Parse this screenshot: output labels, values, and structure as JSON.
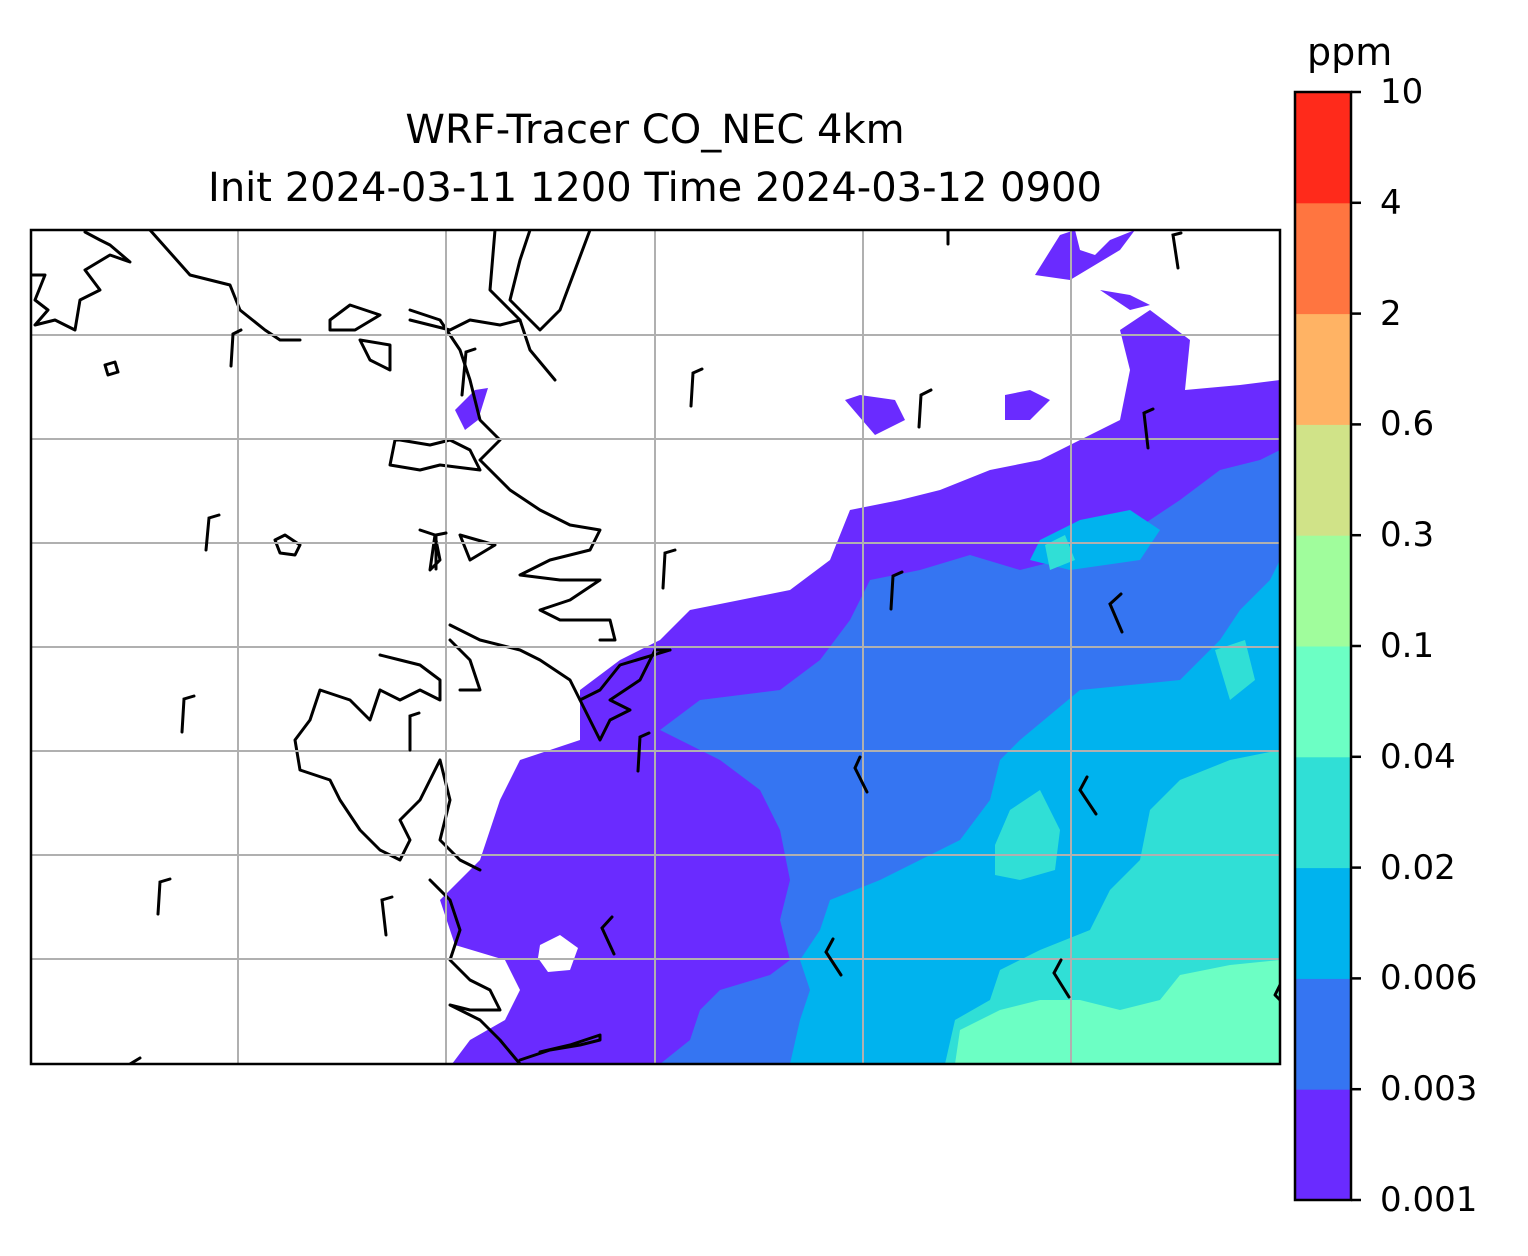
{
  "title": {
    "line1": "WRF-Tracer CO_NEC 4km",
    "line2": "Init 2024-03-11 1200 Time 2024-03-12 0900"
  },
  "colorbar": {
    "unit": "ppm",
    "levels": [
      "0.001",
      "0.003",
      "0.006",
      "0.02",
      "0.04",
      "0.1",
      "0.3",
      "0.6",
      "2",
      "4",
      "10"
    ],
    "colors": [
      "#6a2bff",
      "#3575f2",
      "#00b3ee",
      "#30dfd6",
      "#6cffc4",
      "#a0fd9c",
      "#d0e388",
      "#ffb364",
      "#ff7540",
      "#ff2a1b"
    ]
  },
  "map": {
    "gridlines": true,
    "coastline_color": "#000000",
    "background": "#ffffff",
    "wind_barbs": true
  }
}
